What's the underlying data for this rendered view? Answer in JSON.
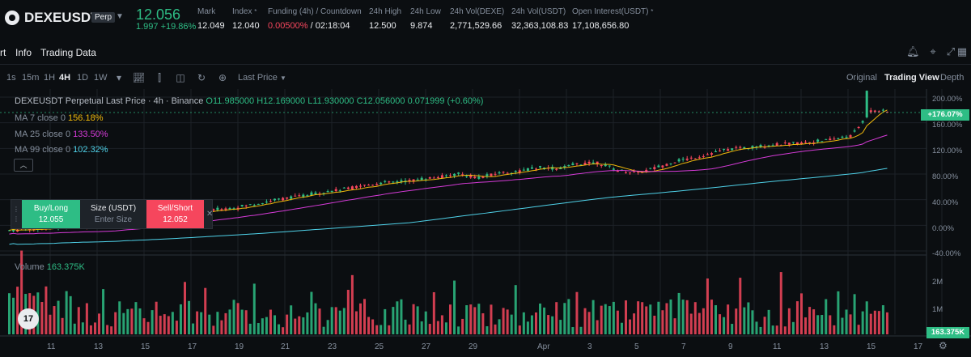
{
  "ticker": {
    "symbol": "DEXEUSDT",
    "badge": "Perp",
    "last_price": "12.056",
    "change": "1.997 +19.86%",
    "mark_label": "Mark",
    "mark_value": "12.049",
    "index_label": "Index",
    "index_value": "12.040",
    "funding_label": "Funding (4h) / Countdown",
    "funding_rate": "0.00500%",
    "countdown": "/ 02:18:04",
    "high_label": "24h High",
    "high_value": "12.500",
    "low_label": "24h Low",
    "low_value": "9.874",
    "vol_base_label": "24h Vol(DEXE)",
    "vol_base_value": "2,771,529.66",
    "vol_quote_label": "24h Vol(USDT)",
    "vol_quote_value": "32,363,108.83",
    "oi_label": "Open Interest(USDT)",
    "oi_value": "17,108,656.80"
  },
  "nav": {
    "tabs": [
      "rt",
      "Info",
      "Trading Data"
    ],
    "icons": [
      "bell-icon",
      "cursor-icon",
      "expand-icon",
      "grid-icon"
    ]
  },
  "toolbar": {
    "timeframes": [
      "1s",
      "15m",
      "1H",
      "4H",
      "1D",
      "1W"
    ],
    "active_timeframe": "4H",
    "price_type": "Last Price",
    "views": [
      "Original",
      "Trading View",
      "Depth"
    ],
    "active_view": "Trading View"
  },
  "chart": {
    "title": "DEXEUSDT Perpetual Last Price · 4h · Binance",
    "ohlc": "O11.985000 H12.169000 L11.930000 C12.056000 0.071999 (+0.60%)",
    "ma7_label": "MA 7 close 0",
    "ma7_value": "156.18%",
    "ma25_label": "MA 25 close 0",
    "ma25_value": "133.50%",
    "ma99_label": "MA 99 close 0",
    "ma99_value": "102.32%",
    "volume_label": "Volume",
    "volume_value": "163.375K",
    "price_tag": "+176.07%",
    "volume_tag": "163.375K",
    "y_ticks": [
      "200.00%",
      "160.00%",
      "120.00%",
      "80.00%",
      "40.00%",
      "0.00%",
      "-40.00%"
    ],
    "vol_ticks": [
      "2M",
      "1M"
    ],
    "x_ticks": [
      "11",
      "13",
      "15",
      "17",
      "19",
      "21",
      "23",
      "25",
      "27",
      "29",
      "Apr",
      "3",
      "5",
      "7",
      "9",
      "11",
      "13",
      "15",
      "17"
    ],
    "colors": {
      "up": "#2ebd85",
      "down": "#f6465d",
      "ma7": "#f0b90b",
      "ma25": "#d63bd8",
      "ma99": "#4fd1e8"
    }
  },
  "trade": {
    "buy_label": "Buy/Long",
    "buy_price": "12.055",
    "size_label": "Size (USDT)",
    "size_placeholder": "Enter Size",
    "sell_label": "Sell/Short",
    "sell_price": "12.052"
  },
  "chart_data": {
    "type": "candlestick",
    "series_scale": "percent",
    "y_range": [
      -40,
      200
    ],
    "description_axis": "x = index of 4h candle from Mar 10 to Apr 15",
    "price_path": [
      [
        0,
        -8
      ],
      [
        20,
        -6
      ],
      [
        40,
        -4
      ],
      [
        60,
        -2
      ],
      [
        80,
        0
      ],
      [
        100,
        2
      ],
      [
        120,
        5
      ],
      [
        140,
        10
      ],
      [
        160,
        14
      ],
      [
        180,
        18
      ],
      [
        200,
        22
      ],
      [
        220,
        26
      ],
      [
        240,
        30
      ],
      [
        260,
        36
      ],
      [
        280,
        42
      ],
      [
        300,
        46
      ],
      [
        320,
        52
      ],
      [
        340,
        56
      ],
      [
        360,
        62
      ],
      [
        380,
        66
      ],
      [
        400,
        68
      ],
      [
        420,
        72
      ],
      [
        440,
        76
      ],
      [
        460,
        80
      ],
      [
        480,
        74
      ],
      [
        500,
        82
      ],
      [
        520,
        84
      ],
      [
        540,
        90
      ],
      [
        560,
        88
      ],
      [
        580,
        96
      ],
      [
        600,
        98
      ],
      [
        620,
        86
      ],
      [
        640,
        82
      ],
      [
        660,
        90
      ],
      [
        680,
        100
      ],
      [
        700,
        106
      ],
      [
        720,
        114
      ],
      [
        740,
        120
      ],
      [
        760,
        122
      ],
      [
        780,
        126
      ],
      [
        800,
        128
      ],
      [
        820,
        130
      ],
      [
        840,
        134
      ],
      [
        860,
        140
      ],
      [
        880,
        180
      ],
      [
        900,
        176
      ]
    ]
  }
}
